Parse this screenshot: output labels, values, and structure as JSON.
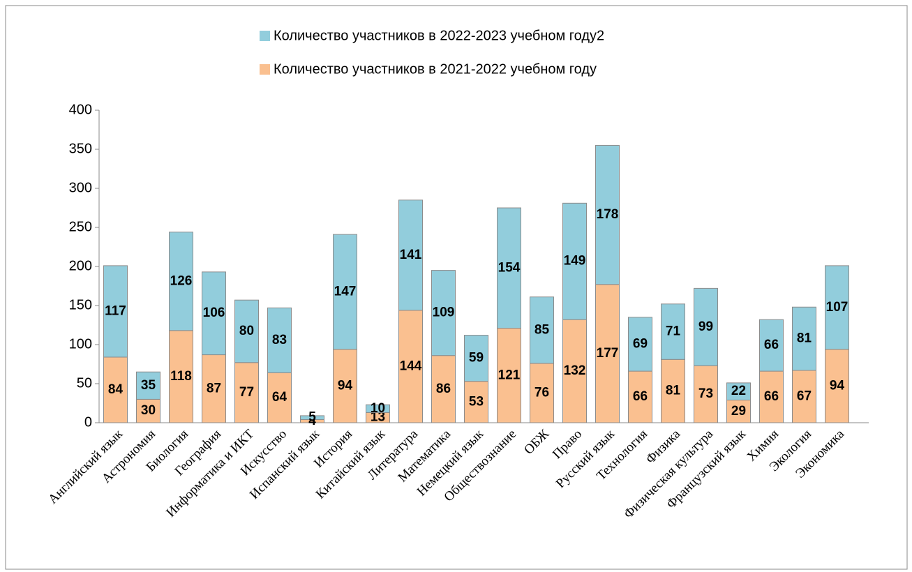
{
  "chart_data": {
    "type": "stacked_bar",
    "categories": [
      "Английский язык",
      "Астрономия",
      "Биология",
      "География",
      "Информатика и ИКТ",
      "Искусство",
      "Испанский язык",
      "История",
      "Китайский язык",
      "Литература",
      "Математика",
      "Немецкий язык",
      "Обществознание",
      "ОБЖ",
      "Право",
      "Русский язык",
      "Технология",
      "Физика",
      "Физическая культура",
      "Французский язык",
      "Химия",
      "Экология",
      "Экономика"
    ],
    "series": [
      {
        "name": "Количество участников в 2021-2022 учебном году",
        "color": "#fac090",
        "values": [
          84,
          30,
          118,
          87,
          77,
          64,
          4,
          94,
          13,
          144,
          86,
          53,
          121,
          76,
          132,
          177,
          66,
          81,
          73,
          29,
          66,
          67,
          94
        ]
      },
      {
        "name": "Количество участников в 2022-2023 учебном году2",
        "color": "#92cddc",
        "values": [
          117,
          35,
          126,
          106,
          80,
          83,
          5,
          147,
          10,
          141,
          109,
          59,
          154,
          85,
          149,
          178,
          69,
          71,
          99,
          22,
          66,
          81,
          107
        ]
      }
    ],
    "ylim": [
      0,
      400
    ],
    "yticks": [
      0,
      50,
      100,
      150,
      200,
      250,
      300,
      350,
      400
    ],
    "grid": false,
    "legend": "top"
  }
}
